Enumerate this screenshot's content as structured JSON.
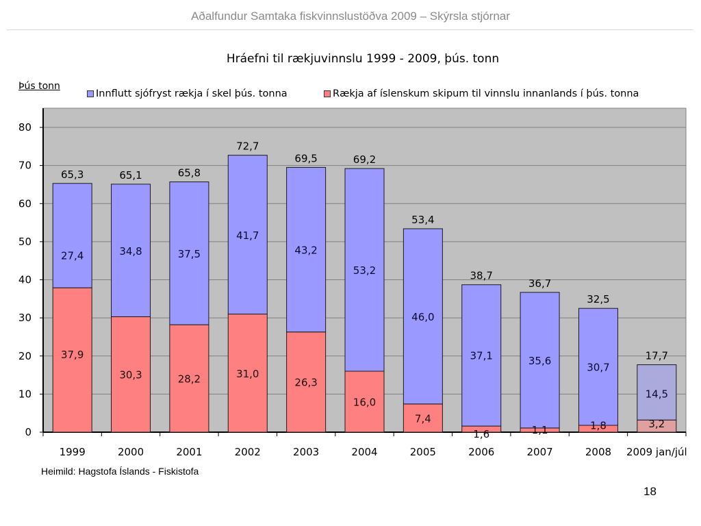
{
  "slide": {
    "header": "Aðalfundur Samtaka fiskvinnslustöðva 2009 – Skýrsla stjórnar",
    "source": "Heimild: Hagstofa Íslands - Fiskistofa",
    "page_number": "18"
  },
  "chart_data": {
    "type": "bar",
    "stacked": true,
    "title": "Hráefni til rækjuvinnslu 1999 - 2009, þús. tonn",
    "ylabel": "Þús tonn",
    "xlabel": "",
    "ylim": [
      0,
      80
    ],
    "yticks": [
      "0",
      "10",
      "20",
      "30",
      "40",
      "50",
      "60",
      "70",
      "80"
    ],
    "grid": true,
    "legend_position": "top",
    "categories": [
      "1999",
      "2000",
      "2001",
      "2002",
      "2003",
      "2004",
      "2005",
      "2006",
      "2007",
      "2008",
      "2009 jan/júl"
    ],
    "series": [
      {
        "name": "Rækja af íslenskum skipum til vinnslu innanlands í  þús. tonna",
        "color": "#ff8080",
        "values": [
          37.9,
          30.3,
          28.2,
          31.0,
          26.3,
          16.0,
          7.4,
          1.6,
          1.1,
          1.8,
          3.2
        ],
        "labels": [
          "37,9",
          "30,3",
          "28,2",
          "31,0",
          "26,3",
          "16,0",
          "7,4",
          "1,6",
          "1,1",
          "1,8",
          "3,2"
        ]
      },
      {
        "name": "Innflutt sjófryst rækja í skel þús. tonna",
        "color": "#9999ff",
        "values": [
          27.4,
          34.8,
          37.5,
          41.7,
          43.2,
          53.2,
          46.0,
          37.1,
          35.6,
          30.7,
          14.5
        ],
        "labels": [
          "27,4",
          "34,8",
          "37,5",
          "41,7",
          "43,2",
          "53,2",
          "46,0",
          "37,1",
          "35,6",
          "30,7",
          "14,5"
        ]
      }
    ],
    "totals": [
      65.3,
      65.1,
      65.8,
      72.7,
      69.5,
      69.2,
      53.4,
      38.7,
      36.7,
      32.5,
      17.7
    ],
    "total_labels": [
      "65,3",
      "65,1",
      "65,8",
      "72,7",
      "69,5",
      "69,2",
      "53,4",
      "38,7",
      "36,7",
      "32,5",
      "17,7"
    ],
    "highlighted_partial_category": "2009 jan/júl",
    "partial_colors": {
      "bottom": "#e0a0a0",
      "top": "#aaaadd"
    },
    "plot_background": "#c0c0c0"
  }
}
